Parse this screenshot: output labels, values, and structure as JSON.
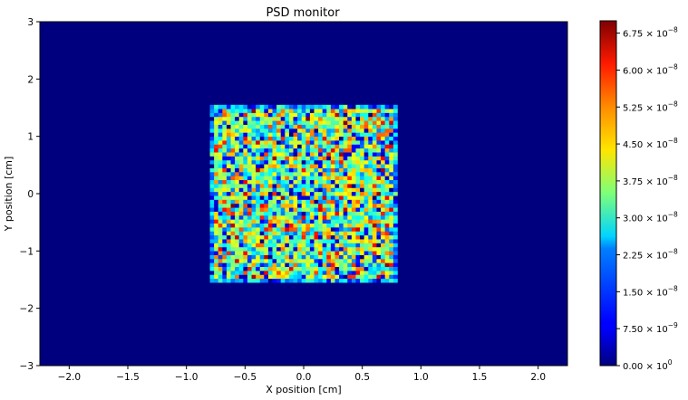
{
  "chart_data": {
    "type": "heatmap",
    "title": "PSD monitor",
    "xlabel": "X position [cm]",
    "ylabel": "Y position [cm]",
    "xlim": [
      -2.25,
      2.25
    ],
    "ylim": [
      -3,
      3
    ],
    "x_ticks": [
      -2.0,
      -1.5,
      -1.0,
      -0.5,
      0.0,
      0.5,
      1.0,
      1.5,
      2.0
    ],
    "x_tick_labels": [
      "−2.0",
      "−1.5",
      "−1.0",
      "−0.5",
      "0.0",
      "0.5",
      "1.0",
      "1.5",
      "2.0"
    ],
    "y_ticks": [
      -3,
      -2,
      -1,
      0,
      1,
      2,
      3
    ],
    "y_tick_labels": [
      "−3",
      "−2",
      "−1",
      "0",
      "1",
      "2",
      "3"
    ],
    "colormap": "jet",
    "color_range": [
      0,
      7e-08
    ],
    "colorbar_ticks": [
      0,
      7.5e-09,
      1.5e-08,
      2.25e-08,
      3e-08,
      3.75e-08,
      4.5e-08,
      5.25e-08,
      6e-08,
      6.75e-08
    ],
    "colorbar_tick_labels": [
      {
        "mantissa": "0.00",
        "exponent": "0"
      },
      {
        "mantissa": "7.50",
        "exponent": "−9"
      },
      {
        "mantissa": "1.50",
        "exponent": "−8"
      },
      {
        "mantissa": "2.25",
        "exponent": "−8"
      },
      {
        "mantissa": "3.00",
        "exponent": "−8"
      },
      {
        "mantissa": "3.75",
        "exponent": "−8"
      },
      {
        "mantissa": "4.50",
        "exponent": "−8"
      },
      {
        "mantissa": "5.25",
        "exponent": "−8"
      },
      {
        "mantissa": "6.00",
        "exponent": "−8"
      },
      {
        "mantissa": "6.75",
        "exponent": "−8"
      }
    ],
    "background_value": 0,
    "nonzero_region": {
      "x": [
        -0.8,
        0.8
      ],
      "y": [
        -1.55,
        1.55
      ]
    },
    "bins": {
      "nx": 45,
      "ny": 45
    },
    "typical_value_in_region": 3.5e-08,
    "value_spread_in_region": [
      1e-08,
      7e-08
    ]
  }
}
